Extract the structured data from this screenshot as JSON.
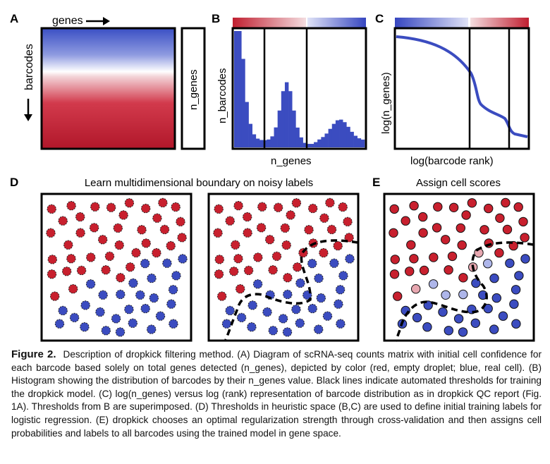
{
  "panels": {
    "A": {
      "letter": "A",
      "x_label": "genes",
      "y_label": "barcodes",
      "side_label": "n_genes"
    },
    "B": {
      "letter": "B",
      "x_label": "n_genes",
      "y_label": "n_barcodes"
    },
    "C": {
      "letter": "C",
      "x_label": "log(barcode rank)",
      "y_label": "log(n_genes)"
    },
    "D": {
      "letter": "D",
      "title": "Learn multidimensional boundary on noisy labels"
    },
    "E": {
      "letter": "E",
      "title": "Assign cell scores"
    }
  },
  "colors": {
    "red": "#c8202e",
    "blue": "#3b4cc0",
    "light_red": "#e7a7b0",
    "light_blue": "#aeb6ea"
  },
  "caption": {
    "label": "Figure 2.",
    "text": "Description of dropkick filtering method. (A) Diagram of scRNA-seq counts matrix with initial cell confidence for each barcode based solely on total genes detected (n_genes), depicted by color (red, empty droplet; blue, real cell). (B) Histogram showing the distribution of barcodes by their n_genes value. Black lines indicate automated thresholds for training the dropkick model. (C) log(n_genes) versus log (rank) representation of barcode distribution as in dropkick QC report (Fig. 1A). Thresholds from B are superimposed. (D) Thresholds in heuristic space (B,C) are used to define initial training labels for logistic regression. (E) dropkick chooses an optimal regularization strength through cross-validation and then assigns cell probabilities and labels to all barcodes using the trained model in gene space."
  }
}
